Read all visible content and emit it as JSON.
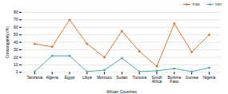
{
  "chart_data": {
    "type": "line",
    "categories": [
      "Tanzania",
      "Algeria",
      "Egypt",
      "Libya",
      "Morocco",
      "Sudan",
      "Tunusia",
      "South\nAfrica",
      "Burkina\nFaso",
      "Guinea",
      "Nigeria"
    ],
    "series": [
      {
        "name": "max",
        "color": "#e07020",
        "values": [
          38,
          34,
          70,
          38,
          20,
          55,
          28,
          8,
          65,
          27,
          50
        ]
      },
      {
        "name": "min",
        "color": "#40aab0",
        "values": [
          1,
          22,
          22,
          1,
          3,
          19,
          1,
          2,
          5,
          1,
          6
        ]
      }
    ],
    "xlabel": "African Countries",
    "ylabel": "Consanguinity (%)",
    "ylim": [
      0,
      80
    ],
    "yticks": [
      0,
      10,
      20,
      30,
      40,
      50,
      60,
      70,
      80
    ],
    "grid": true,
    "marker": "circle",
    "legend": "top"
  }
}
